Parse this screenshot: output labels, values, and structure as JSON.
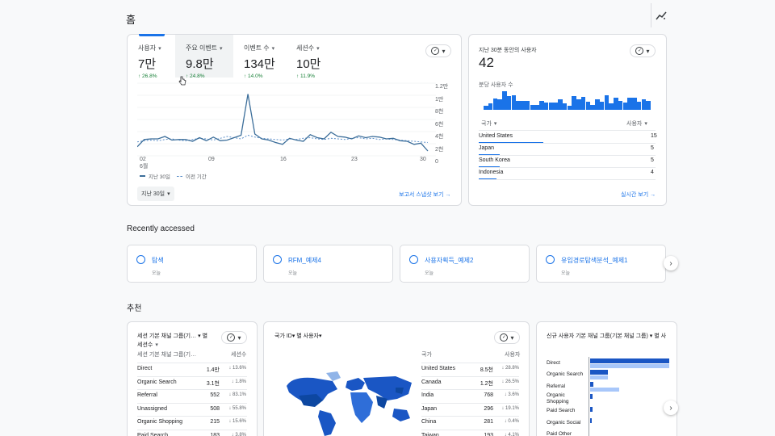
{
  "page": {
    "title": "홈"
  },
  "overview": {
    "metrics": [
      {
        "label": "사용자",
        "value": "7만",
        "change": "↑ 26.8%"
      },
      {
        "label": "주요 이벤트",
        "value": "9.8만",
        "change": "↑ 24.8%"
      },
      {
        "label": "이벤트 수",
        "value": "134만",
        "change": "↑ 14.0%"
      },
      {
        "label": "세션수",
        "value": "10만",
        "change": "↑ 11.9%"
      }
    ],
    "y_ticks": [
      "1.2만",
      "1만",
      "8천",
      "6천",
      "4천",
      "2천",
      "0"
    ],
    "x_ticks": [
      "02",
      "09",
      "16",
      "23",
      "30"
    ],
    "x_month": "6월",
    "legend_current": "지난 30일",
    "legend_previous": "이전 기간",
    "date_range": "지난 30일",
    "view_snapshot": "보고서 스냅샷 보기 →"
  },
  "realtime": {
    "title": "지난 30분 동안의 사용자",
    "value": "42",
    "per_minute_label": "분당 사용자 수",
    "per_minute_bars": [
      5,
      8,
      13,
      12,
      22,
      16,
      17,
      11,
      11,
      11,
      6,
      6,
      11,
      9,
      9,
      9,
      12,
      8,
      5,
      16,
      12,
      15,
      10,
      6,
      12,
      10,
      17,
      8,
      14,
      11,
      9,
      14,
      14,
      10,
      12,
      11
    ],
    "col_country": "국가",
    "col_users": "사용자",
    "rows": [
      {
        "country": "United States",
        "users": "15",
        "bar": 1.0
      },
      {
        "country": "Japan",
        "users": "5",
        "bar": 0.33
      },
      {
        "country": "South Korea",
        "users": "5",
        "bar": 0.33
      },
      {
        "country": "Indonesia",
        "users": "4",
        "bar": 0.27
      }
    ],
    "view_realtime": "실시간 보기 →"
  },
  "recent": {
    "heading": "Recently accessed",
    "items": [
      {
        "title": "탐색",
        "sub": "오늘"
      },
      {
        "title": "RFM_예제4",
        "sub": "오늘"
      },
      {
        "title": "사용자획득_예제2",
        "sub": "오늘"
      },
      {
        "title": "유입경로탐색분석_예제1",
        "sub": "오늘"
      }
    ]
  },
  "suggested": {
    "heading": "추천",
    "sessions_card": {
      "title_line1": "세션 기본 채널 그룹(기…",
      "title_line1b": "별",
      "title_line2": "세션수",
      "col1": "세션 기본 채널 그룹(기…",
      "col2": "세션수",
      "rows": [
        {
          "name": "Direct",
          "value": "1.4만",
          "change": "↓ 13.6%"
        },
        {
          "name": "Organic Search",
          "value": "3.1천",
          "change": "↓ 1.8%"
        },
        {
          "name": "Referral",
          "value": "552",
          "change": "↓ 83.1%"
        },
        {
          "name": "Unassigned",
          "value": "508",
          "change": "↓ 55.8%"
        },
        {
          "name": "Organic Shopping",
          "value": "215",
          "change": "↓ 15.6%"
        },
        {
          "name": "Paid Search",
          "value": "183",
          "change": "↓ 3.8%"
        }
      ]
    },
    "country_card": {
      "title": "국가 ID▾ 별 사용자▾",
      "col1": "국가",
      "col2": "사용자",
      "rows": [
        {
          "name": "United States",
          "value": "8.5천",
          "change": "↓ 28.8%"
        },
        {
          "name": "Canada",
          "value": "1.2천",
          "change": "↓ 26.5%"
        },
        {
          "name": "India",
          "value": "768",
          "change": "↓ 3.6%"
        },
        {
          "name": "Japan",
          "value": "296",
          "change": "↓ 19.1%"
        },
        {
          "name": "China",
          "value": "281",
          "change": "↓ 0.4%"
        },
        {
          "name": "Taiwan",
          "value": "193",
          "change": "↓ 4.1%"
        }
      ]
    },
    "new_users_card": {
      "title": "신규 사용자 기본 채널 그룹(기본 채널 그룹) ▾ 별 사",
      "rows": [
        "Direct",
        "Organic Search",
        "Referral",
        "Organic Shopping",
        "Paid Search",
        "Organic Social",
        "Paid Other"
      ]
    }
  },
  "colors": {
    "accent": "#1a73e8",
    "line": "#3c6e9a",
    "card_border": "#dadce0"
  }
}
